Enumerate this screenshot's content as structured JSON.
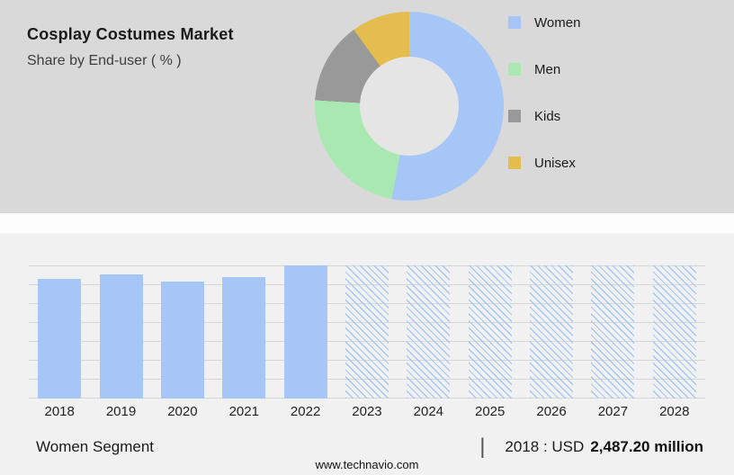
{
  "header": {
    "title": "Cosplay Costumes Market",
    "subtitle": "Share by End-user ( % )"
  },
  "chart_data": [
    {
      "type": "pie",
      "donut": true,
      "title": "Share by End-user ( % )",
      "legend_position": "right",
      "series": [
        {
          "name": "Women",
          "value_pct": 53,
          "color": "#a6c6f7"
        },
        {
          "name": "Men",
          "value_pct": 23,
          "color": "#a9e8b0"
        },
        {
          "name": "Kids",
          "value_pct": 14,
          "color": "#999999"
        },
        {
          "name": "Unisex",
          "value_pct": 10,
          "color": "#e4bd4e"
        }
      ]
    },
    {
      "type": "bar",
      "title": "Women Segment",
      "categories": [
        "2018",
        "2019",
        "2020",
        "2021",
        "2022",
        "2023",
        "2024",
        "2025",
        "2026",
        "2027",
        "2028"
      ],
      "relative_heights_pct": [
        90,
        93,
        88,
        91,
        100,
        100,
        100,
        100,
        100,
        100,
        100
      ],
      "forecast_from": "2023",
      "bar_color": "#a6c6f7",
      "grid": true,
      "anchor": {
        "year": "2018",
        "value_usd_million": "2,487.20"
      }
    }
  ],
  "info_bar": {
    "segment_label": "Women Segment",
    "separator": "|",
    "year_label": "2018 : USD",
    "value_bold": "2,487.20 million"
  },
  "footer": {
    "site": "www.technavio.com"
  }
}
